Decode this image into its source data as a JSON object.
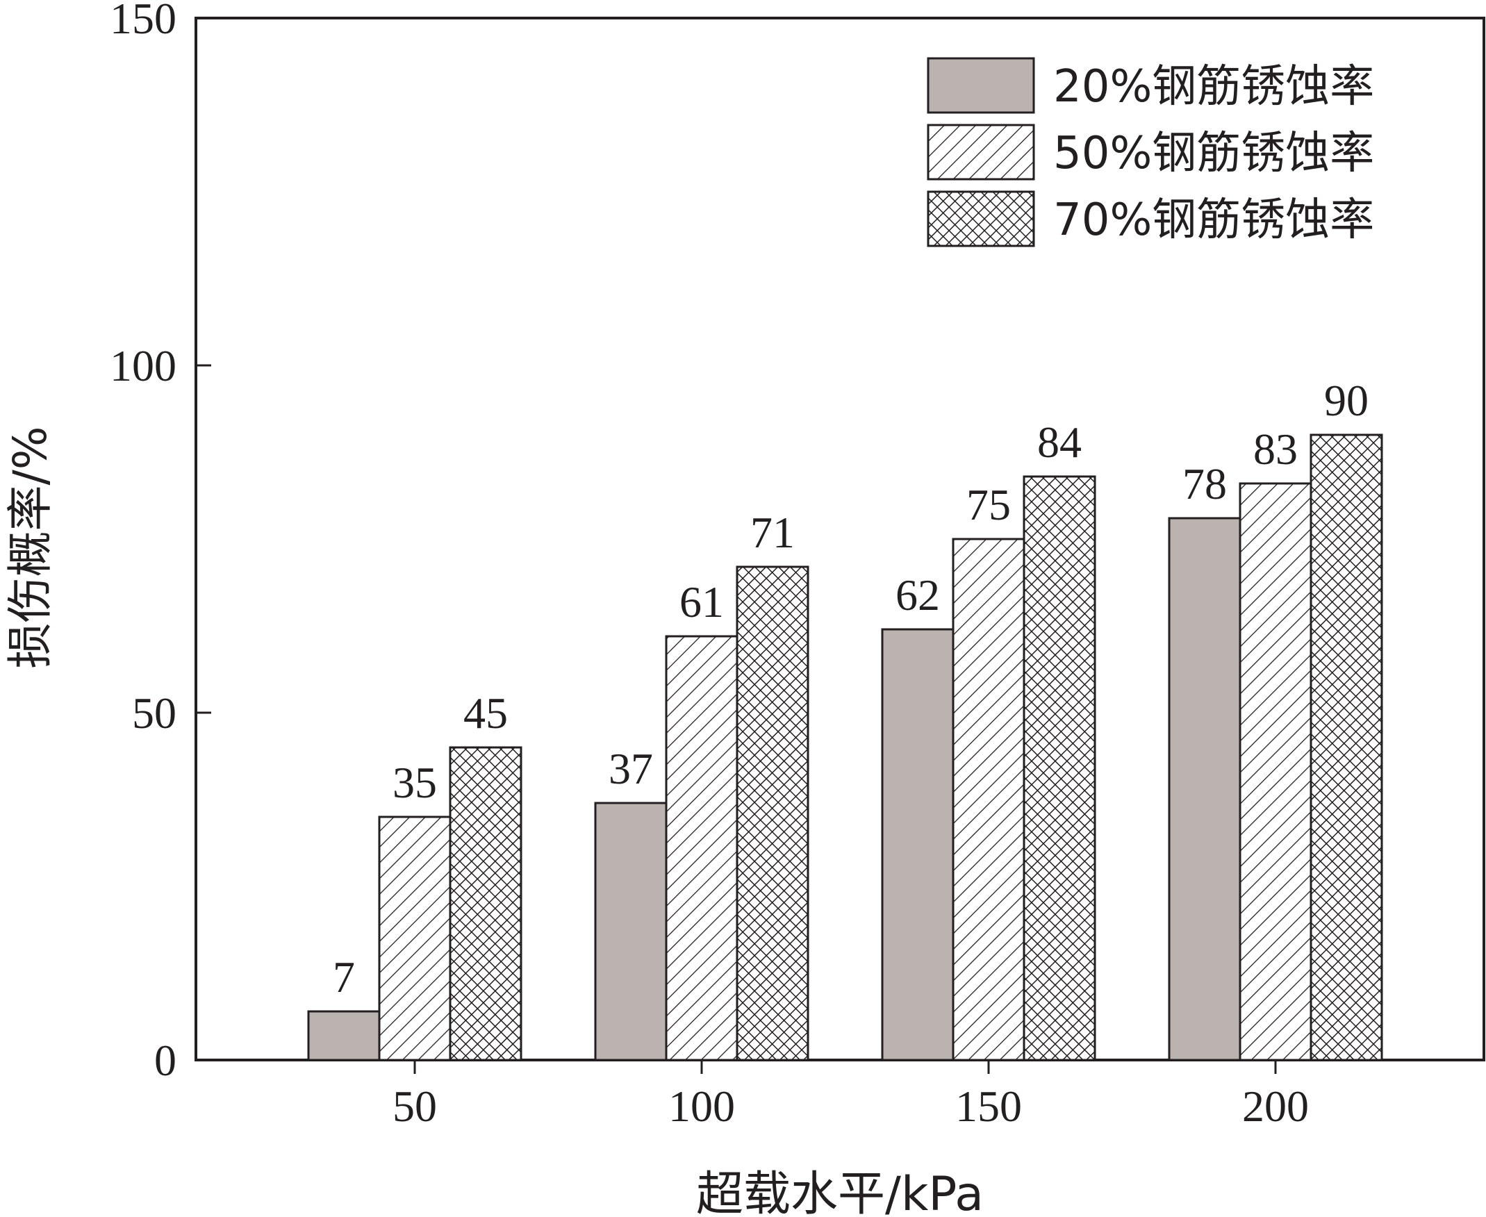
{
  "chart_data": {
    "type": "bar",
    "title": "",
    "xlabel": "超载水平/kPa",
    "ylabel": "损伤概率/%",
    "categories": [
      "50",
      "100",
      "150",
      "200"
    ],
    "series": [
      {
        "name": "20%钢筋锈蚀率",
        "values": [
          7,
          37,
          62,
          78
        ],
        "pattern": "solid-gray"
      },
      {
        "name": "50%钢筋锈蚀率",
        "values": [
          35,
          61,
          75,
          83
        ],
        "pattern": "diagonal-hatch"
      },
      {
        "name": "70%钢筋锈蚀率",
        "values": [
          45,
          71,
          84,
          90
        ],
        "pattern": "cross-hatch"
      }
    ],
    "ylim": [
      0,
      150
    ],
    "yticks": [
      "0",
      "50",
      "100",
      "150"
    ],
    "grid": false,
    "legend_position": "top-right",
    "data_labels": true,
    "colors": {
      "bar_fill": "#bbb3b0",
      "stroke": "#231f20",
      "background": "#ffffff"
    }
  }
}
